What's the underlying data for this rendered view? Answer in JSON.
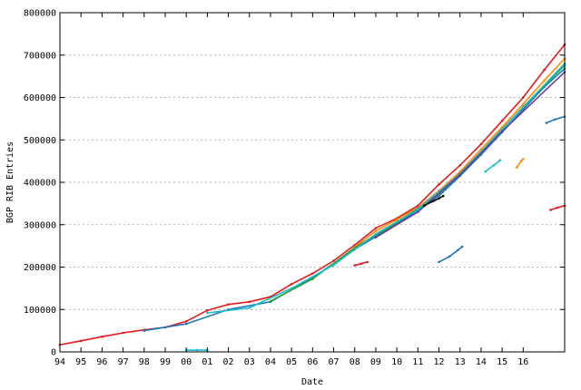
{
  "chart_data": {
    "type": "scatter",
    "title": "",
    "xlabel": "Date",
    "ylabel": "BGP RIB Entries",
    "xlim": [
      1994.0,
      2017.97
    ],
    "ylim": [
      0,
      800000
    ],
    "grid": {
      "y": true,
      "x": false,
      "style": "dotted"
    },
    "legend": "none",
    "x_ticks": [
      {
        "value": 1994,
        "label": "94"
      },
      {
        "value": 1995,
        "label": "95"
      },
      {
        "value": 1996,
        "label": "96"
      },
      {
        "value": 1997,
        "label": "97"
      },
      {
        "value": 1998,
        "label": "98"
      },
      {
        "value": 1999,
        "label": "99"
      },
      {
        "value": 2000,
        "label": "00"
      },
      {
        "value": 2001,
        "label": "01"
      },
      {
        "value": 2002,
        "label": "02"
      },
      {
        "value": 2003,
        "label": "03"
      },
      {
        "value": 2004,
        "label": "04"
      },
      {
        "value": 2005,
        "label": "05"
      },
      {
        "value": 2006,
        "label": "06"
      },
      {
        "value": 2007,
        "label": "07"
      },
      {
        "value": 2008,
        "label": "08"
      },
      {
        "value": 2009,
        "label": "09"
      },
      {
        "value": 2010,
        "label": "10"
      },
      {
        "value": 2011,
        "label": "11"
      },
      {
        "value": 2012,
        "label": "12"
      },
      {
        "value": 2013,
        "label": "13"
      },
      {
        "value": 2014,
        "label": "14"
      },
      {
        "value": 2015,
        "label": "15"
      },
      {
        "value": 2016,
        "label": "16"
      }
    ],
    "y_ticks": [
      {
        "value": 0,
        "label": "0"
      },
      {
        "value": 100000,
        "label": "100000"
      },
      {
        "value": 200000,
        "label": "200000"
      },
      {
        "value": 300000,
        "label": "300000"
      },
      {
        "value": 400000,
        "label": "400000"
      },
      {
        "value": 500000,
        "label": "500000"
      },
      {
        "value": 600000,
        "label": "600000"
      },
      {
        "value": 700000,
        "label": "700000"
      },
      {
        "value": 800000,
        "label": "800000"
      }
    ],
    "series": [
      {
        "color": "#e41a1c",
        "points": [
          [
            1994.0,
            17000
          ],
          [
            1995.0,
            26000
          ],
          [
            1996.0,
            36000
          ],
          [
            1997.0,
            45000
          ],
          [
            1998.0,
            52000
          ],
          [
            1999.0,
            58000
          ],
          [
            2000.0,
            72000
          ],
          [
            2001.0,
            98000
          ],
          [
            2002.0,
            112000
          ],
          [
            2003.0,
            118000
          ],
          [
            2004.0,
            130000
          ],
          [
            2005.0,
            160000
          ],
          [
            2006.0,
            185000
          ],
          [
            2007.0,
            215000
          ],
          [
            2008.0,
            252000
          ],
          [
            2009.0,
            292000
          ],
          [
            2010.0,
            315000
          ],
          [
            2011.0,
            345000
          ],
          [
            2012.0,
            395000
          ],
          [
            2013.0,
            440000
          ],
          [
            2014.0,
            490000
          ],
          [
            2015.0,
            545000
          ],
          [
            2016.0,
            600000
          ],
          [
            2017.0,
            665000
          ],
          [
            2017.97,
            725000
          ]
        ]
      },
      {
        "color": "#ff8c00",
        "points": [
          [
            2008.0,
            248000
          ],
          [
            2009.0,
            285000
          ],
          [
            2010.0,
            312000
          ],
          [
            2011.0,
            340000
          ],
          [
            2012.0,
            380000
          ],
          [
            2013.0,
            425000
          ],
          [
            2014.0,
            478000
          ],
          [
            2015.0,
            530000
          ],
          [
            2016.0,
            585000
          ],
          [
            2017.0,
            640000
          ],
          [
            2017.97,
            692000
          ]
        ]
      },
      {
        "color": "#1f78b4",
        "points": [
          [
            1998.0,
            50000
          ],
          [
            2000.0,
            66000
          ],
          [
            2002.0,
            100000
          ],
          [
            2004.0,
            118000
          ],
          [
            2006.0,
            175000
          ],
          [
            2008.0,
            242000
          ],
          [
            2010.0,
            302000
          ],
          [
            2012.0,
            368000
          ],
          [
            2013.0,
            415000
          ],
          [
            2014.0,
            465000
          ],
          [
            2015.0,
            518000
          ],
          [
            2016.0,
            572000
          ],
          [
            2017.0,
            625000
          ],
          [
            2017.97,
            668000
          ]
        ]
      },
      {
        "color": "#33a02c",
        "points": [
          [
            2004.0,
            120000
          ],
          [
            2006.0,
            172000
          ],
          [
            2008.0,
            246000
          ],
          [
            2010.0,
            305000
          ],
          [
            2012.0,
            372000
          ],
          [
            2014.0,
            470000
          ],
          [
            2016.0,
            578000
          ],
          [
            2017.97,
            676000
          ]
        ]
      },
      {
        "color": "#17becf",
        "points": [
          [
            2001.0,
            92000
          ],
          [
            2003.0,
            104000
          ],
          [
            2005.0,
            150000
          ],
          [
            2007.0,
            205000
          ],
          [
            2009.0,
            278000
          ],
          [
            2011.0,
            336000
          ],
          [
            2013.0,
            420000
          ],
          [
            2015.0,
            525000
          ],
          [
            2017.97,
            680000
          ]
        ]
      },
      {
        "color": "#6a3d9a",
        "points": [
          [
            2009.0,
            270000
          ],
          [
            2011.0,
            330000
          ],
          [
            2013.0,
            418000
          ],
          [
            2015.0,
            520000
          ],
          [
            2017.97,
            660000
          ]
        ]
      },
      {
        "color": "#000000",
        "points": [
          [
            2011.3,
            345000
          ],
          [
            2011.7,
            355000
          ],
          [
            2012.0,
            362000
          ],
          [
            2012.2,
            368000
          ]
        ]
      },
      {
        "color": "#1f78b4",
        "points": [
          [
            2017.1,
            540000
          ],
          [
            2017.5,
            548000
          ],
          [
            2017.97,
            555000
          ]
        ]
      },
      {
        "color": "#1f78b4",
        "points": [
          [
            2012.0,
            212000
          ],
          [
            2012.5,
            225000
          ],
          [
            2012.9,
            240000
          ],
          [
            2013.1,
            248000
          ]
        ]
      },
      {
        "color": "#17becf",
        "points": [
          [
            2014.2,
            425000
          ],
          [
            2014.6,
            440000
          ],
          [
            2014.9,
            452000
          ]
        ]
      },
      {
        "color": "#ff8c00",
        "points": [
          [
            2015.7,
            435000
          ],
          [
            2015.9,
            450000
          ],
          [
            2016.0,
            455000
          ]
        ]
      },
      {
        "color": "#e41a1c",
        "points": [
          [
            2017.3,
            335000
          ],
          [
            2017.6,
            340000
          ],
          [
            2017.97,
            345000
          ]
        ]
      },
      {
        "color": "#e41a1c",
        "points": [
          [
            2008.0,
            204000
          ],
          [
            2008.3,
            208000
          ],
          [
            2008.6,
            212000
          ]
        ]
      },
      {
        "color": "#17becf",
        "points": [
          [
            2000.0,
            4000
          ],
          [
            2000.5,
            4000
          ],
          [
            2001.0,
            4000
          ]
        ]
      }
    ]
  }
}
